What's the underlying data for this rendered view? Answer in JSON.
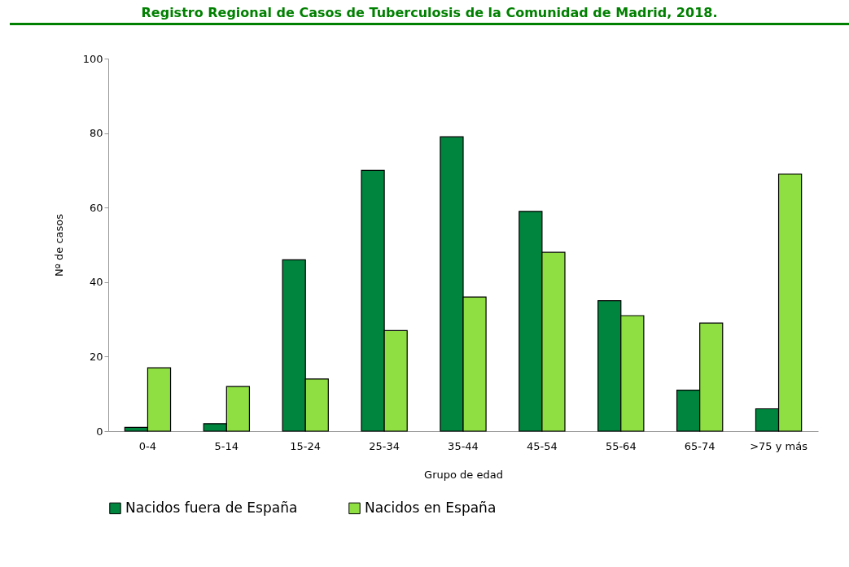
{
  "chart_data": {
    "type": "bar",
    "title": "Registro Regional de Casos de Tuberculosis de la Comunidad de Madrid, 2018.",
    "xlabel": "Grupo de edad",
    "ylabel": "Nº de casos",
    "categories": [
      "0-4",
      "5-14",
      "15-24",
      "25-34",
      "35-44",
      "45-54",
      "55-64",
      "65-74",
      ">75 y más"
    ],
    "series": [
      {
        "name": "Nacidos fuera de España",
        "color": "#00853e",
        "values": [
          1,
          2,
          46,
          70,
          79,
          59,
          35,
          11,
          6
        ]
      },
      {
        "name": "Nacidos en España",
        "color": "#8fdf42",
        "values": [
          17,
          12,
          14,
          27,
          36,
          48,
          31,
          29,
          69
        ]
      }
    ],
    "ylim": [
      0,
      100
    ],
    "yticks": [
      0,
      20,
      40,
      60,
      80,
      100
    ],
    "grid": false,
    "legend": "bottom"
  }
}
